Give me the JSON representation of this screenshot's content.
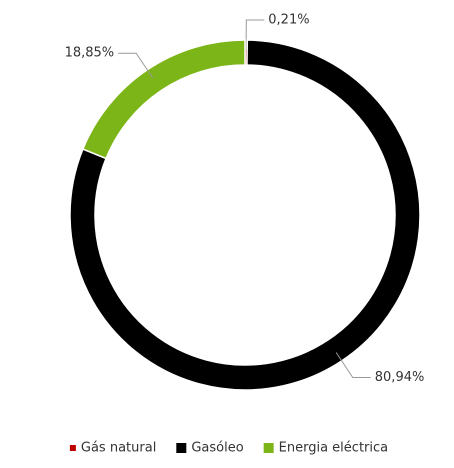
{
  "chart_data": {
    "type": "donut",
    "categories": [
      "Gás natural",
      "Gasóleo",
      "Energia eléctrica"
    ],
    "values": [
      0.21,
      80.94,
      18.85
    ],
    "value_labels": [
      "0,21%",
      "80,94%",
      "18,85%"
    ],
    "colors": [
      "#c00000",
      "#000000",
      "#7cb518"
    ],
    "legend": "bottom"
  }
}
